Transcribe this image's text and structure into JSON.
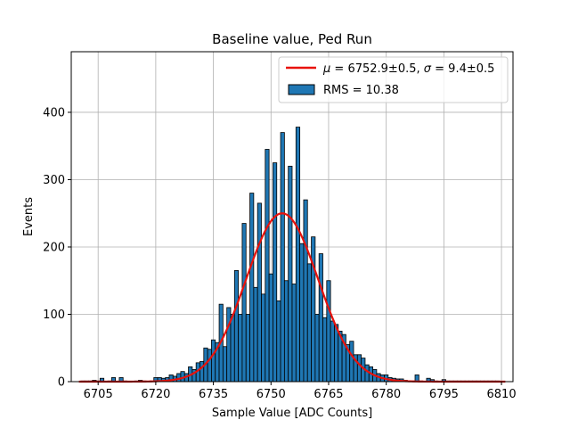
{
  "chart_data": {
    "type": "bar",
    "title": "Baseline value, Ped Run",
    "xlabel": "Sample Value [ADC Counts]",
    "ylabel": "Events",
    "xlim": [
      6698,
      6813
    ],
    "ylim": [
      0,
      490
    ],
    "xticks": [
      6705,
      6720,
      6735,
      6750,
      6765,
      6780,
      6795,
      6810
    ],
    "yticks": [
      0,
      100,
      200,
      300,
      400
    ],
    "grid": true,
    "legend_position": "top-right",
    "colors": {
      "bars": "#1f77b4",
      "bar_edge": "#000000",
      "fit": "#e8120c",
      "grid": "#b0b0b0"
    },
    "legend": {
      "fit_label_mu": "μ",
      "fit_label_rest": " = 6752.9±0.5, ",
      "fit_label_sigma": "σ",
      "fit_label_end": " = 9.4±0.5",
      "hist_label": "RMS = 10.38"
    },
    "histogram": {
      "bin_width": 1,
      "bins": [
        [
          6701,
          1
        ],
        [
          6702,
          1
        ],
        [
          6703,
          1
        ],
        [
          6704,
          2
        ],
        [
          6705,
          1
        ],
        [
          6706,
          5
        ],
        [
          6707,
          0
        ],
        [
          6708,
          1
        ],
        [
          6709,
          6
        ],
        [
          6710,
          0
        ],
        [
          6711,
          6
        ],
        [
          6712,
          1
        ],
        [
          6713,
          0
        ],
        [
          6714,
          0
        ],
        [
          6715,
          1
        ],
        [
          6716,
          2
        ],
        [
          6717,
          1
        ],
        [
          6718,
          0
        ],
        [
          6719,
          1
        ],
        [
          6720,
          6
        ],
        [
          6721,
          6
        ],
        [
          6722,
          5
        ],
        [
          6723,
          6
        ],
        [
          6724,
          10
        ],
        [
          6725,
          8
        ],
        [
          6726,
          12
        ],
        [
          6727,
          15
        ],
        [
          6728,
          12
        ],
        [
          6729,
          22
        ],
        [
          6730,
          18
        ],
        [
          6731,
          28
        ],
        [
          6732,
          30
        ],
        [
          6733,
          50
        ],
        [
          6734,
          48
        ],
        [
          6735,
          62
        ],
        [
          6736,
          58
        ],
        [
          6737,
          115
        ],
        [
          6738,
          52
        ],
        [
          6739,
          110
        ],
        [
          6740,
          100
        ],
        [
          6741,
          165
        ],
        [
          6742,
          100
        ],
        [
          6743,
          235
        ],
        [
          6744,
          100
        ],
        [
          6745,
          280
        ],
        [
          6746,
          140
        ],
        [
          6747,
          265
        ],
        [
          6748,
          130
        ],
        [
          6749,
          345
        ],
        [
          6750,
          160
        ],
        [
          6751,
          325
        ],
        [
          6752,
          120
        ],
        [
          6753,
          370
        ],
        [
          6754,
          150
        ],
        [
          6755,
          320
        ],
        [
          6756,
          145
        ],
        [
          6757,
          378
        ],
        [
          6758,
          205
        ],
        [
          6759,
          270
        ],
        [
          6760,
          175
        ],
        [
          6761,
          215
        ],
        [
          6762,
          100
        ],
        [
          6763,
          190
        ],
        [
          6764,
          95
        ],
        [
          6765,
          150
        ],
        [
          6766,
          90
        ],
        [
          6767,
          85
        ],
        [
          6768,
          75
        ],
        [
          6769,
          70
        ],
        [
          6770,
          55
        ],
        [
          6771,
          60
        ],
        [
          6772,
          40
        ],
        [
          6773,
          40
        ],
        [
          6774,
          35
        ],
        [
          6775,
          25
        ],
        [
          6776,
          22
        ],
        [
          6777,
          18
        ],
        [
          6778,
          12
        ],
        [
          6779,
          10
        ],
        [
          6780,
          10
        ],
        [
          6781,
          6
        ],
        [
          6782,
          5
        ],
        [
          6783,
          4
        ],
        [
          6784,
          4
        ],
        [
          6785,
          2
        ],
        [
          6786,
          1
        ],
        [
          6787,
          1
        ],
        [
          6788,
          10
        ],
        [
          6789,
          1
        ],
        [
          6790,
          0
        ],
        [
          6791,
          5
        ],
        [
          6792,
          3
        ],
        [
          6793,
          1
        ],
        [
          6794,
          0
        ],
        [
          6795,
          3
        ],
        [
          6796,
          1
        ],
        [
          6797,
          1
        ],
        [
          6798,
          1
        ],
        [
          6799,
          1
        ],
        [
          6800,
          1
        ],
        [
          6801,
          1
        ],
        [
          6802,
          1
        ],
        [
          6803,
          1
        ],
        [
          6804,
          1
        ],
        [
          6805,
          1
        ],
        [
          6806,
          1
        ],
        [
          6807,
          1
        ],
        [
          6808,
          1
        ],
        [
          6809,
          1
        ]
      ]
    },
    "fit": {
      "type": "gaussian",
      "amplitude": 250,
      "mean": 6752.9,
      "sigma": 9.4,
      "x_range": [
        6700,
        6811
      ]
    }
  }
}
